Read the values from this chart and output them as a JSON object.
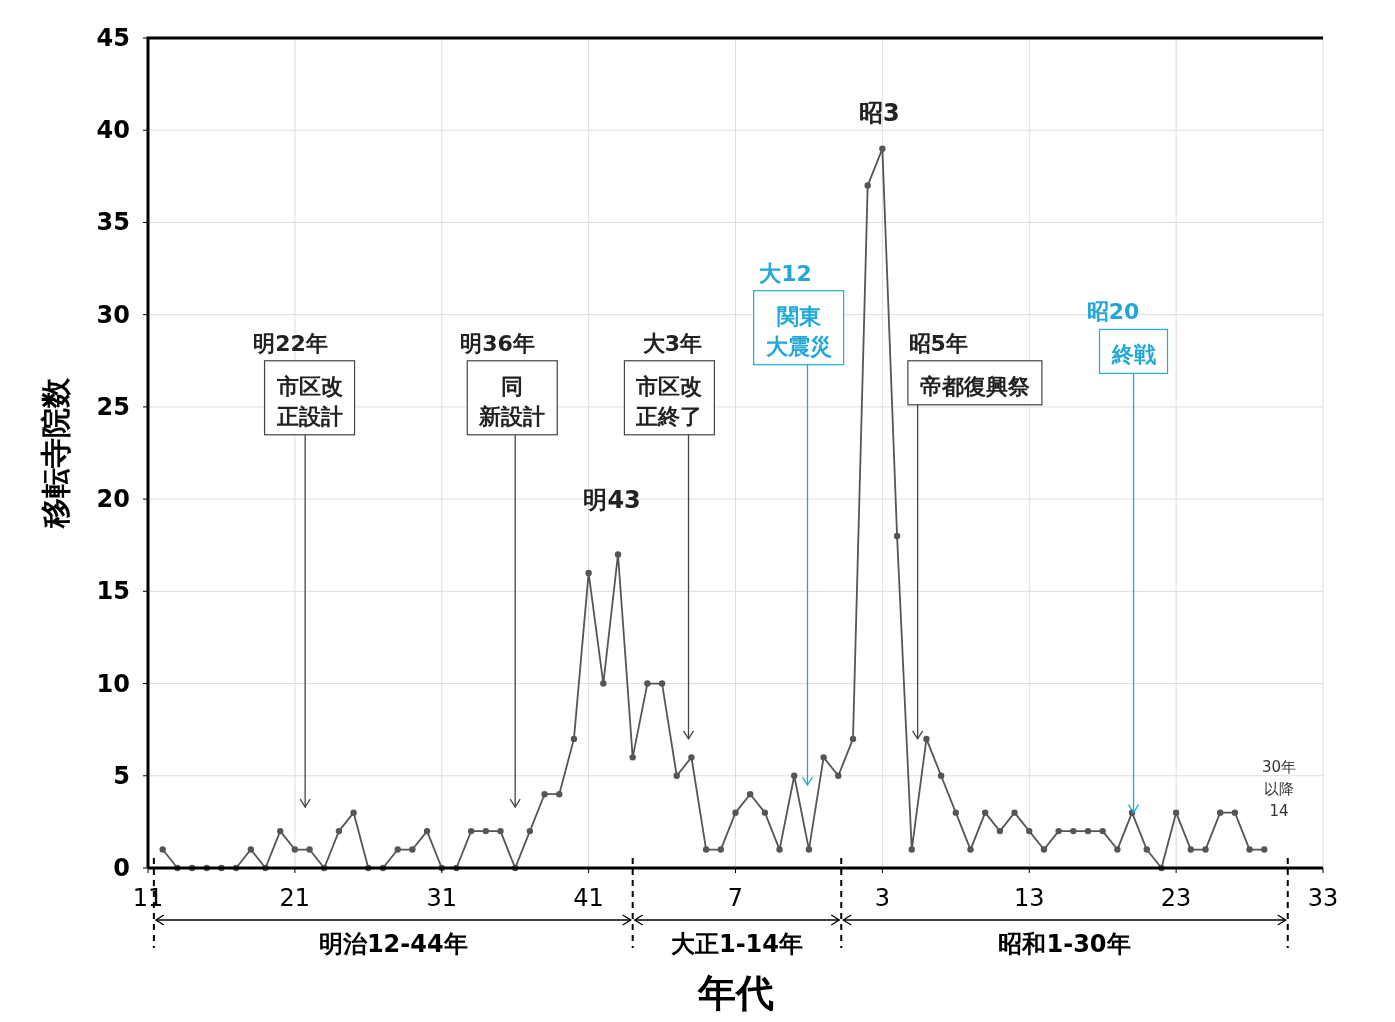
{
  "chart_data": {
    "type": "line",
    "xlabel": "年代",
    "ylabel": "移転寺院数",
    "categories": [
      "11",
      null,
      null,
      null,
      null,
      null,
      null,
      null,
      null,
      null,
      "21",
      null,
      null,
      null,
      null,
      null,
      null,
      null,
      null,
      null,
      "31",
      null,
      null,
      null,
      null,
      null,
      null,
      null,
      null,
      null,
      "41",
      null,
      null,
      null,
      null,
      null,
      null,
      null,
      null,
      null,
      "7",
      null,
      null,
      null,
      null,
      null,
      null,
      null,
      null,
      null,
      "3",
      null,
      null,
      null,
      null,
      null,
      null,
      null,
      null,
      null,
      "13",
      null,
      null,
      null,
      null,
      null,
      null,
      null,
      null,
      null,
      "23",
      null,
      null,
      null,
      null,
      null,
      null,
      null,
      null,
      null,
      "33"
    ],
    "series": [
      {
        "color": "#555555",
        "values": [
          null,
          1,
          0,
          0,
          0,
          0,
          0,
          1,
          0,
          2,
          1,
          1,
          0,
          2,
          3,
          0,
          0,
          1,
          1,
          2,
          0,
          0,
          2,
          2,
          2,
          0,
          2,
          4,
          4,
          7,
          16,
          10,
          17,
          6,
          10,
          10,
          5,
          6,
          1,
          1,
          3,
          4,
          3,
          1,
          5,
          1,
          6,
          5,
          7,
          37,
          39,
          18,
          1,
          7,
          5,
          3,
          1,
          3,
          2,
          3,
          2,
          1,
          2,
          2,
          2,
          2,
          1,
          3,
          1,
          0,
          3,
          1,
          1,
          3,
          3,
          1,
          1,
          null,
          null,
          null,
          null
        ]
      }
    ],
    "ylim": [
      0,
      45
    ],
    "yticks": [
      0,
      5,
      10,
      15,
      20,
      25,
      30,
      35,
      40,
      45
    ],
    "grid": true,
    "marker": "circle",
    "line_style": "solid",
    "annotations": [
      "明22年",
      "市区改正設計",
      "明36年",
      "同新設計",
      "大3年",
      "市区改正終了",
      "大12",
      "関東大震災",
      "昭5年",
      "帝都復興祭",
      "昭20",
      {
        "text": "終戦",
        "y": 3
      },
      "明43",
      "昭3",
      "30年以降14",
      "明治12-44年",
      "大正1-14年",
      "昭和1-30年"
    ]
  }
}
